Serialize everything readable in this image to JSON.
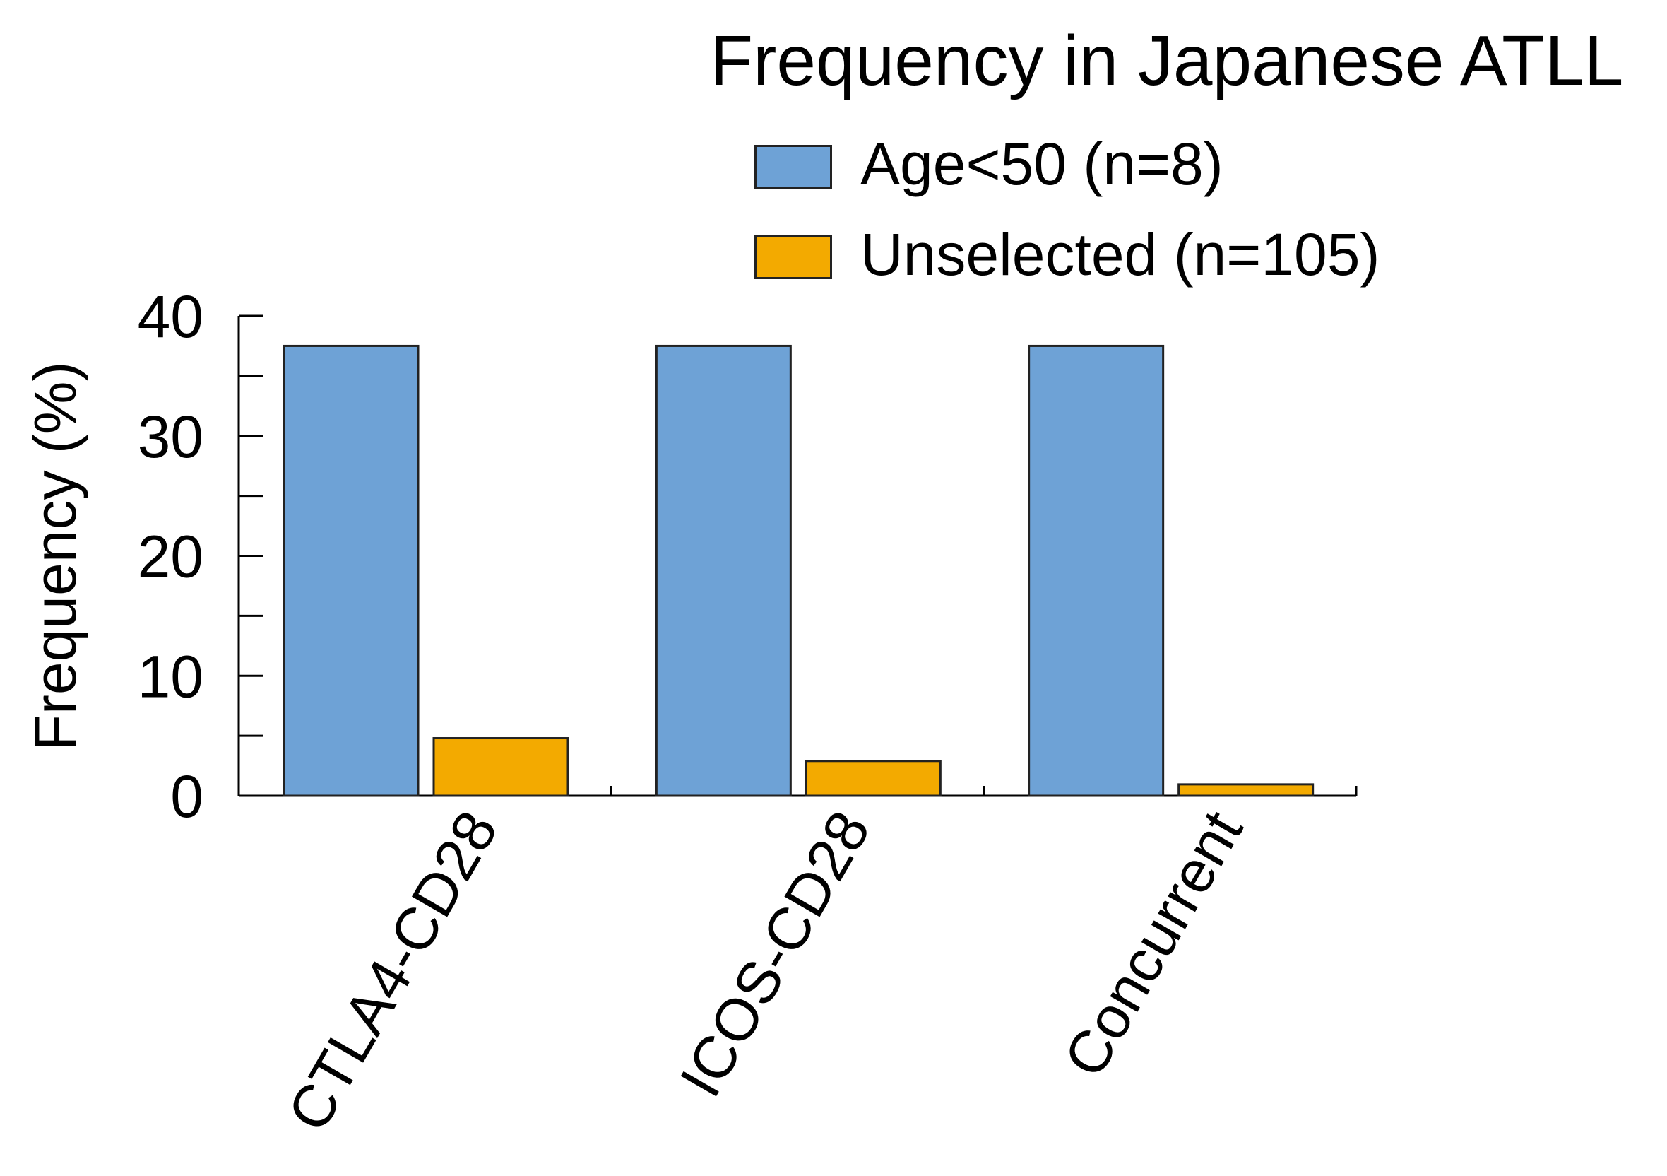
{
  "chart_data": {
    "type": "bar",
    "title": "Frequency in Japanese ATLL",
    "xlabel": "",
    "ylabel": "Frequency (%)",
    "categories": [
      "CTLA4-CD28",
      "ICOS-CD28",
      "Concurrent"
    ],
    "series": [
      {
        "name": "Age<50 (n=8)",
        "color": "#6ea2d6",
        "values": [
          37.5,
          37.5,
          37.5
        ]
      },
      {
        "name": "Unselected (n=105)",
        "color": "#f3aa00",
        "values": [
          4.8,
          2.9,
          0.95
        ]
      }
    ],
    "ylim": [
      0,
      40
    ],
    "yticks": [
      0,
      10,
      20,
      30,
      40
    ],
    "y_minor_step": 5,
    "grid": false,
    "legend_position": "top-right"
  }
}
